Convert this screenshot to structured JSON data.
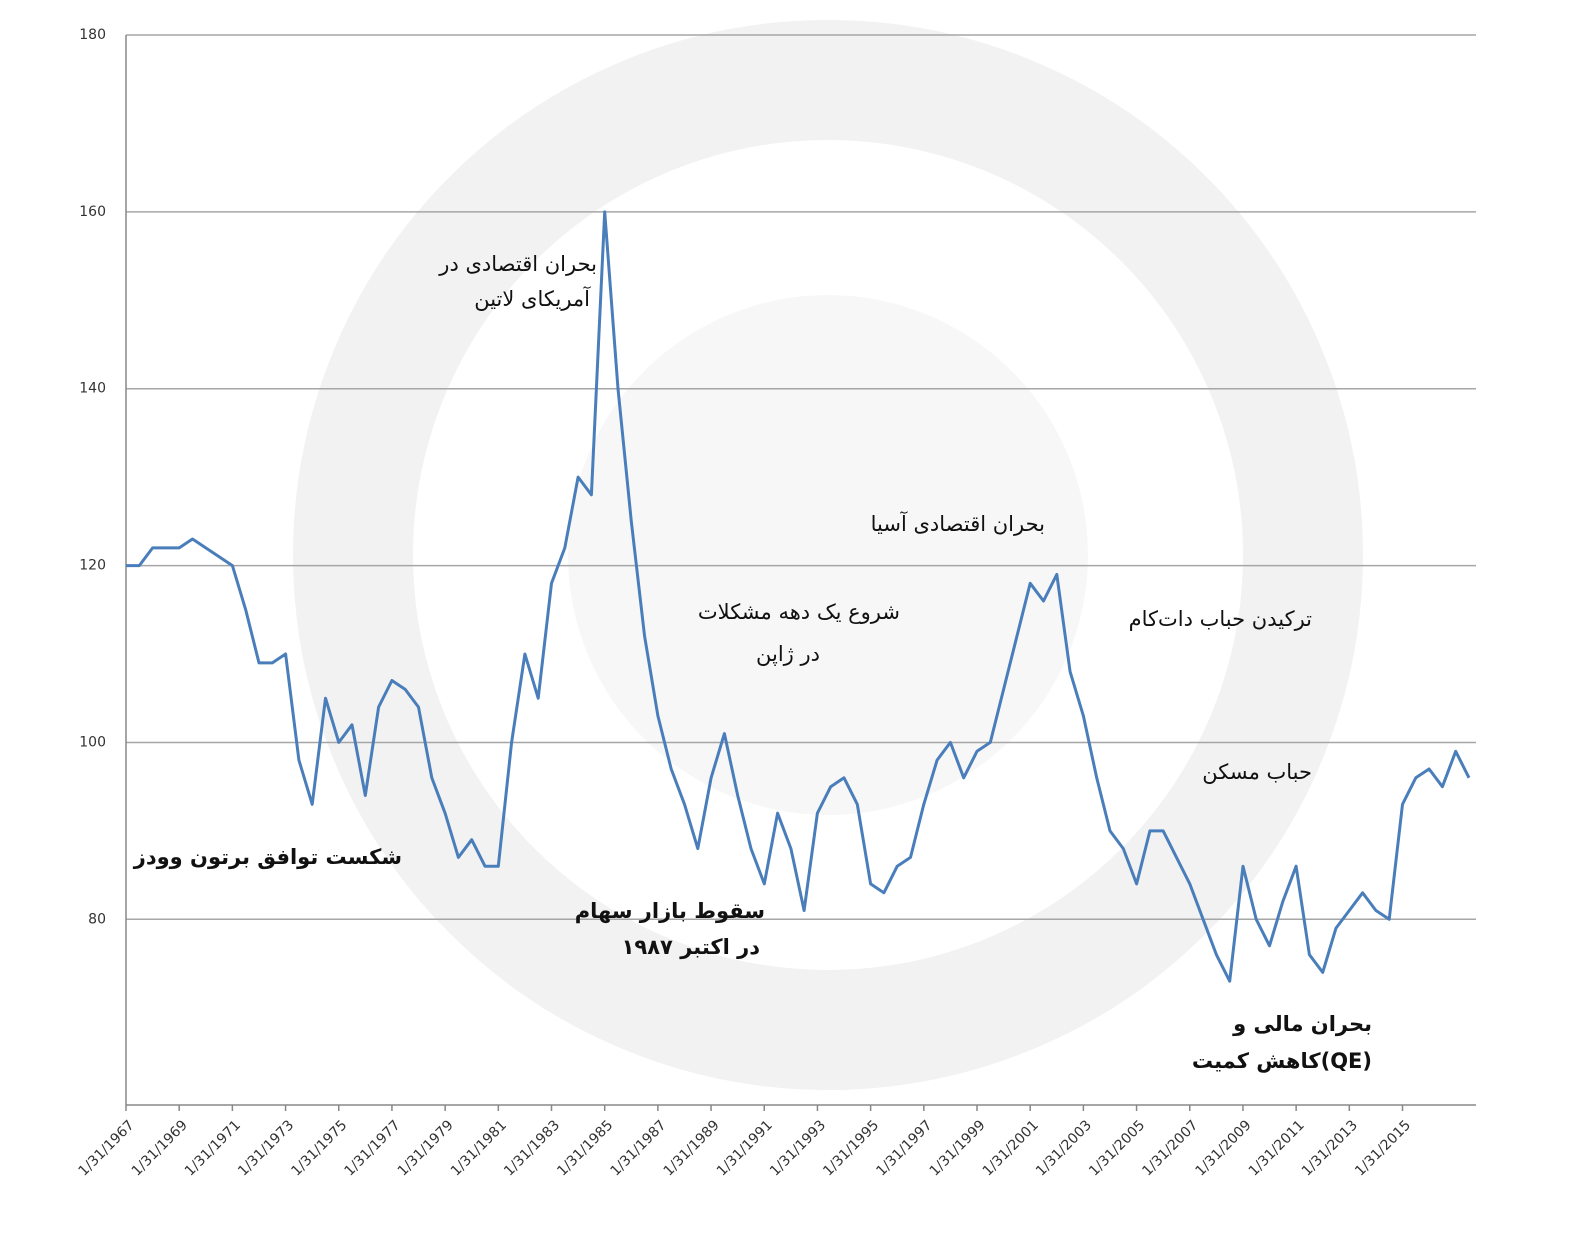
{
  "chart_data": {
    "type": "line",
    "categories": [
      "1/31/1967",
      null,
      null,
      null,
      "1/31/1969",
      null,
      null,
      null,
      "1/31/1971",
      null,
      null,
      null,
      "1/31/1973",
      null,
      null,
      null,
      "1/31/1975",
      null,
      null,
      null,
      "1/31/1977",
      null,
      null,
      null,
      "1/31/1979",
      null,
      null,
      null,
      "1/31/1981",
      null,
      null,
      null,
      "1/31/1983",
      null,
      null,
      null,
      "1/31/1985",
      null,
      null,
      null,
      "1/31/1987",
      null,
      null,
      null,
      "1/31/1989",
      null,
      null,
      null,
      "1/31/1991",
      null,
      null,
      null,
      "1/31/1993",
      null,
      null,
      null,
      "1/31/1995",
      null,
      null,
      null,
      "1/31/1997",
      null,
      null,
      null,
      "1/31/1999",
      null,
      null,
      null,
      "1/31/2001",
      null,
      null,
      null,
      "1/31/2003",
      null,
      null,
      null,
      "1/31/2005",
      null,
      null,
      null,
      "1/31/2007",
      null,
      null,
      null,
      "1/31/2009",
      null,
      null,
      null,
      "1/31/2011",
      null,
      null,
      null,
      "1/31/2013",
      null,
      null,
      null,
      "1/31/2015",
      null,
      null,
      null,
      null,
      null
    ],
    "values": [
      120,
      120,
      122,
      122,
      122,
      123,
      122,
      121,
      120,
      115,
      109,
      109,
      110,
      98,
      93,
      105,
      100,
      102,
      94,
      104,
      107,
      106,
      104,
      96,
      92,
      87,
      89,
      86,
      86,
      100,
      110,
      105,
      118,
      122,
      130,
      128,
      160,
      140,
      125,
      112,
      103,
      97,
      93,
      88,
      96,
      101,
      94,
      88,
      84,
      92,
      88,
      81,
      92,
      95,
      96,
      93,
      84,
      83,
      86,
      87,
      93,
      98,
      100,
      96,
      99,
      100,
      106,
      112,
      118,
      116,
      119,
      108,
      103,
      96,
      90,
      88,
      84,
      90,
      90,
      87,
      84,
      80,
      76,
      73,
      86,
      80,
      77,
      82,
      86,
      76,
      74,
      79,
      81,
      83,
      81,
      80,
      93,
      96,
      97,
      95,
      99,
      96
    ],
    "color": "#4a7ebb",
    "ylim": [
      59,
      180
    ],
    "yticks": [
      80,
      100,
      120,
      140,
      160,
      180
    ],
    "grid": true,
    "annotations": [
      {
        "lines": [
          "بحران اقتصادی در",
          "آمریکای لاتین"
        ],
        "bold": false
      },
      {
        "lines": [
          "بحران اقتصادی آسیا"
        ],
        "bold": false
      },
      {
        "lines": [
          "شروع یک دهه مشکلات",
          "در ژاپن"
        ],
        "bold": false
      },
      {
        "lines": [
          "ترکیدن حباب دات‌کام"
        ],
        "bold": false
      },
      {
        "lines": [
          "حباب مسکن"
        ],
        "bold": false
      },
      {
        "lines": [
          "شکست توافق برتون وودز"
        ],
        "bold": true
      },
      {
        "lines": [
          "سقوط بازار سهام",
          "در اکتبر ۱۹۸۷"
        ],
        "bold": true
      },
      {
        "lines": [
          "بحران مالی و",
          "کاهش کمیت(QE)"
        ],
        "bold": true
      }
    ]
  }
}
